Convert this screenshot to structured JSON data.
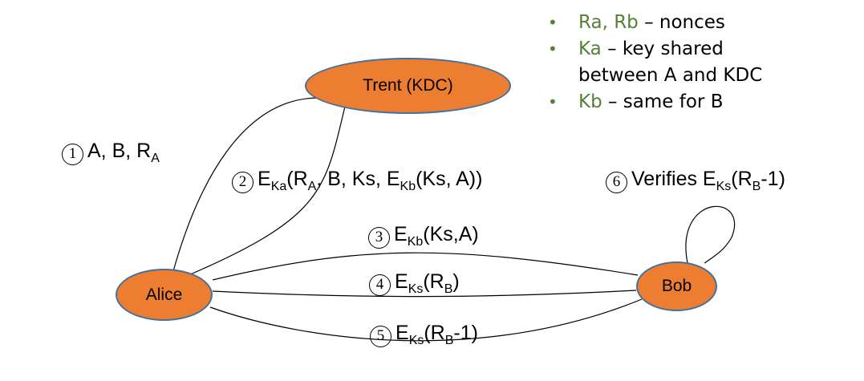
{
  "colors": {
    "node_fill": "#ed7d31",
    "node_border": "#41719c",
    "legend_term": "#548235",
    "line": "#000000"
  },
  "nodes": {
    "trent": "Trent (KDC)",
    "alice": "Alice",
    "bob": "Bob"
  },
  "messages": [
    {
      "num": "1",
      "parts": [
        {
          "t": "A, B, R"
        },
        {
          "sub": "A"
        }
      ]
    },
    {
      "num": "2",
      "parts": [
        {
          "t": "E"
        },
        {
          "sub": "Ka"
        },
        {
          "t": "(R"
        },
        {
          "sub": "A"
        },
        {
          "t": ", B, Ks, E"
        },
        {
          "sub": "Kb"
        },
        {
          "t": "(Ks, A))"
        }
      ]
    },
    {
      "num": "3",
      "parts": [
        {
          "t": "E"
        },
        {
          "sub": "Kb"
        },
        {
          "t": "(Ks,A)"
        }
      ]
    },
    {
      "num": "4",
      "parts": [
        {
          "t": "E"
        },
        {
          "sub": "Ks"
        },
        {
          "t": "(R"
        },
        {
          "sub": "B"
        },
        {
          "t": ")"
        }
      ]
    },
    {
      "num": "5",
      "parts": [
        {
          "t": "E"
        },
        {
          "sub": "Ks"
        },
        {
          "t": "(R"
        },
        {
          "sub": "B"
        },
        {
          "t": "-1)"
        }
      ]
    },
    {
      "num": "6",
      "parts": [
        {
          "t": "Verifies E"
        },
        {
          "sub": "Ks"
        },
        {
          "t": "(R"
        },
        {
          "sub": "B"
        },
        {
          "t": "-1)"
        }
      ]
    }
  ],
  "legend": [
    {
      "bullet": "•",
      "term": "Ra, Rb",
      "desc": " – nonces"
    },
    {
      "bullet": "•",
      "term": "Ka",
      "desc": " – key shared",
      "cont": "between A and KDC"
    },
    {
      "bullet": "•",
      "term": "Kb",
      "desc": " – same for B"
    }
  ]
}
